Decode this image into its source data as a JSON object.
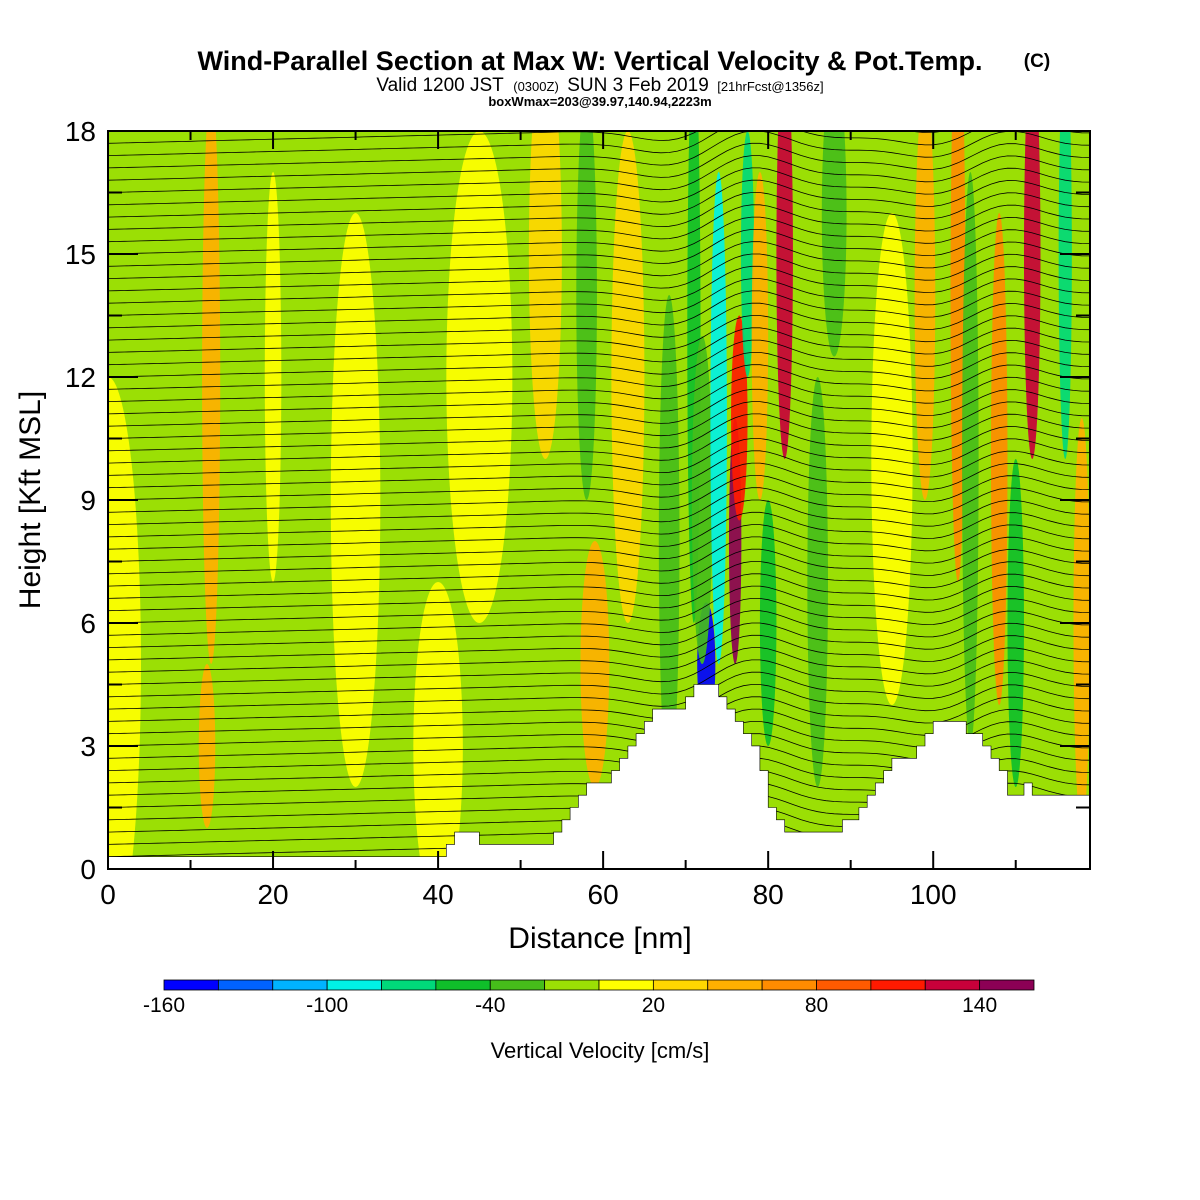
{
  "title": "Wind-Parallel Section at Max W: Vertical Velocity & Pot.Temp.",
  "title_mark": "(C)",
  "subtitle": {
    "valid": "Valid 1200 JST",
    "utc": "(0300Z)",
    "date": "SUN 3 Feb 2019",
    "forecast": "[21hrFcst@1356z]"
  },
  "box_info": "boxWmax=203@39.97,140.94,2223m",
  "chart_data": {
    "type": "heatmap",
    "xlabel": "Distance [nm]",
    "ylabel": "Height [Kft MSL]",
    "xlim": [
      0,
      119
    ],
    "ylim": [
      0,
      18
    ],
    "x_ticks": [
      0,
      20,
      40,
      60,
      80,
      100
    ],
    "y_ticks": [
      0,
      3,
      6,
      9,
      12,
      15,
      18
    ],
    "colorbar": {
      "label": "Vertical Velocity [cm/s]",
      "tick_labels": [
        "-160",
        "-100",
        "-40",
        "20",
        "80",
        "140"
      ],
      "tick_values": [
        -160,
        -100,
        -40,
        20,
        80,
        140
      ],
      "levels": [
        -160,
        -140,
        -120,
        -100,
        -80,
        -60,
        -40,
        -20,
        0,
        20,
        40,
        60,
        80,
        100,
        120,
        140,
        160
      ],
      "colors": [
        "#0000ff",
        "#0062ff",
        "#00b3ff",
        "#00f2e6",
        "#00d97a",
        "#0fbf2a",
        "#46bd1a",
        "#9bdf05",
        "#ffff00",
        "#ffd700",
        "#ffb000",
        "#ff8c00",
        "#ff5a00",
        "#ff1a00",
        "#c8003a",
        "#8c0055"
      ]
    },
    "terrain_x": [
      0,
      1,
      2,
      3,
      4,
      5,
      6,
      7,
      8,
      9,
      10,
      11,
      12,
      13,
      14,
      15,
      16,
      17,
      18,
      19,
      20,
      21,
      22,
      23,
      24,
      25,
      26,
      27,
      28,
      29,
      30,
      31,
      32,
      33,
      34,
      35,
      36,
      37,
      38,
      39,
      40,
      41,
      42,
      43,
      44,
      45,
      46,
      47,
      48,
      49,
      50,
      51,
      52,
      53,
      54,
      55,
      56,
      57,
      58,
      59,
      60,
      61,
      62,
      63,
      64,
      65,
      66,
      67,
      68,
      69,
      70,
      71,
      72,
      73,
      74,
      75,
      76,
      77,
      78,
      79,
      80,
      81,
      82,
      83,
      84,
      85,
      86,
      87,
      88,
      89,
      90,
      91,
      92,
      93,
      94,
      95,
      96,
      97,
      98,
      99,
      100,
      101,
      102,
      103,
      104,
      105,
      106,
      107,
      108,
      109,
      110,
      111,
      112,
      113,
      114,
      115,
      116,
      117,
      118,
      119
    ],
    "terrain_kft": [
      0.3,
      0.3,
      0.3,
      0.3,
      0.3,
      0.3,
      0.3,
      0.3,
      0.3,
      0.3,
      0.3,
      0.3,
      0.3,
      0.3,
      0.3,
      0.3,
      0.3,
      0.3,
      0.3,
      0.3,
      0.3,
      0.3,
      0.3,
      0.3,
      0.3,
      0.3,
      0.3,
      0.3,
      0.3,
      0.3,
      0.3,
      0.3,
      0.3,
      0.3,
      0.3,
      0.3,
      0.3,
      0.3,
      0.3,
      0.3,
      0.3,
      0.6,
      0.9,
      0.9,
      0.9,
      0.6,
      0.6,
      0.6,
      0.6,
      0.6,
      0.6,
      0.6,
      0.6,
      0.6,
      0.9,
      1.2,
      1.5,
      1.8,
      2.1,
      2.1,
      2.1,
      2.4,
      2.7,
      3.0,
      3.3,
      3.6,
      3.9,
      3.9,
      3.9,
      3.9,
      4.2,
      4.5,
      4.5,
      4.5,
      4.2,
      3.9,
      3.6,
      3.3,
      3.0,
      2.4,
      1.5,
      1.2,
      0.9,
      0.9,
      0.9,
      0.9,
      0.9,
      0.9,
      0.9,
      1.2,
      1.2,
      1.5,
      1.8,
      2.1,
      2.4,
      2.7,
      2.7,
      2.7,
      3.0,
      3.3,
      3.6,
      3.6,
      3.6,
      3.6,
      3.3,
      3.3,
      3.0,
      2.7,
      2.4,
      1.8,
      1.8,
      2.1,
      1.8,
      1.8,
      1.8,
      1.8,
      1.8,
      1.8,
      1.8,
      1.5
    ]
  }
}
